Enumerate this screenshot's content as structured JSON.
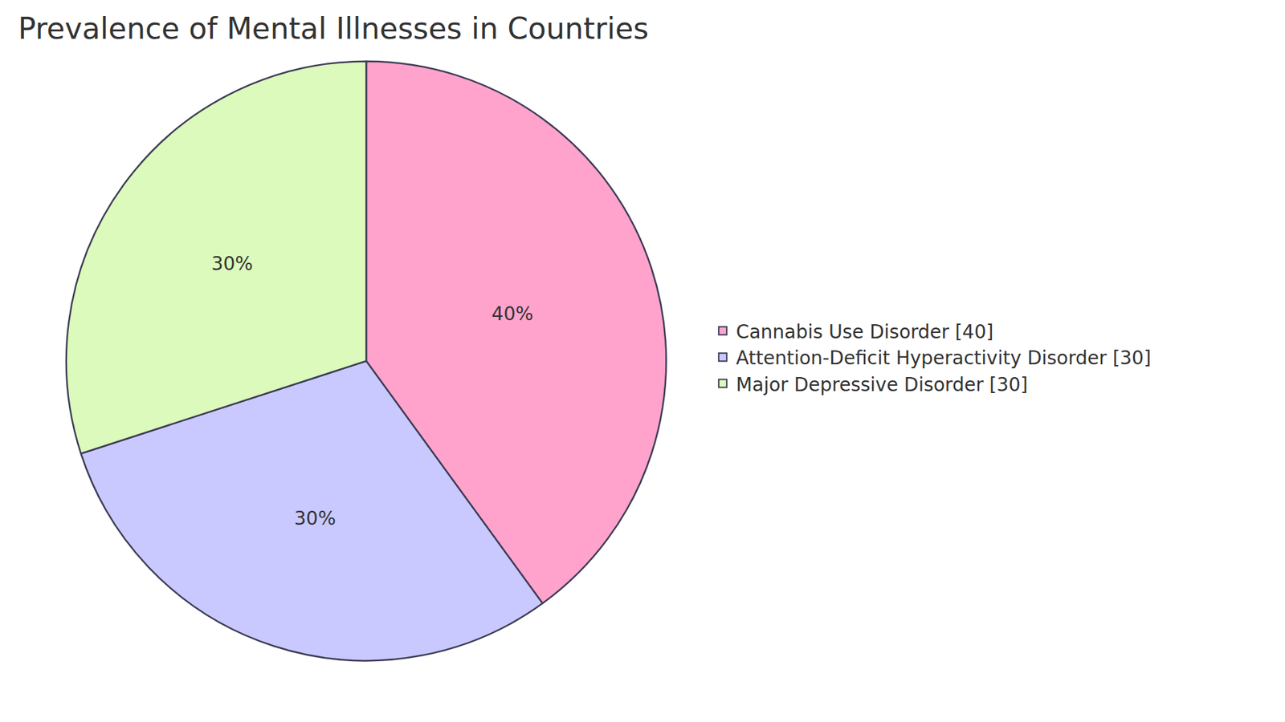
{
  "chart_data": {
    "type": "pie",
    "title": "Prevalence of Mental Illnesses in Countries",
    "categories": [
      "Cannabis Use Disorder [40]",
      "Attention-Deficit Hyperactivity Disorder [30]",
      "Major Depressive Disorder [30]"
    ],
    "values": [
      40,
      30,
      30
    ],
    "value_labels": [
      "40%",
      "30%",
      "30%"
    ],
    "colors": [
      "#ffa3cd",
      "#c9c9ff",
      "#dbfabb"
    ],
    "data_labels": true,
    "legend": "right"
  }
}
